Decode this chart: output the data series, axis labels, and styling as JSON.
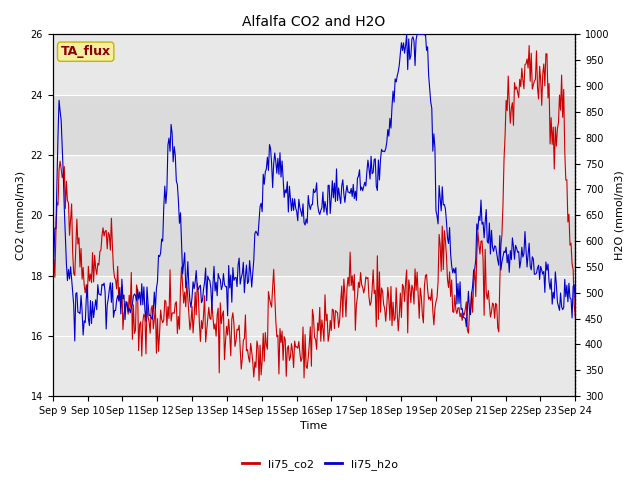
{
  "title": "Alfalfa CO2 and H2O",
  "xlabel": "Time",
  "ylabel_left": "CO2 (mmol/m3)",
  "ylabel_right": "H2O (mmol/m3)",
  "ylim_left": [
    14,
    26
  ],
  "ylim_right": [
    300,
    1000
  ],
  "yticks_left": [
    14,
    16,
    18,
    20,
    22,
    24,
    26
  ],
  "yticks_right": [
    300,
    350,
    400,
    450,
    500,
    550,
    600,
    650,
    700,
    750,
    800,
    850,
    900,
    950,
    1000
  ],
  "xtick_labels": [
    "Sep 9",
    "Sep 10",
    "Sep 11",
    "Sep 12",
    "Sep 13",
    "Sep 14",
    "Sep 15",
    "Sep 16",
    "Sep 17",
    "Sep 18",
    "Sep 19",
    "Sep 20",
    "Sep 21",
    "Sep 22",
    "Sep 23",
    "Sep 24"
  ],
  "legend_labels": [
    "li75_co2",
    "li75_h2o"
  ],
  "annotation_text": "TA_flux",
  "annotation_color": "#8b0000",
  "annotation_bg": "#f5f0a0",
  "annotation_edge": "#c8b400",
  "bg_color": "#e8e8e8",
  "band1_color": "#d8d8d8",
  "line_color_co2": "#cc0000",
  "line_color_h2o": "#0000cc",
  "linewidth": 0.8,
  "title_fontsize": 10,
  "label_fontsize": 8,
  "tick_fontsize": 7,
  "legend_fontsize": 8
}
